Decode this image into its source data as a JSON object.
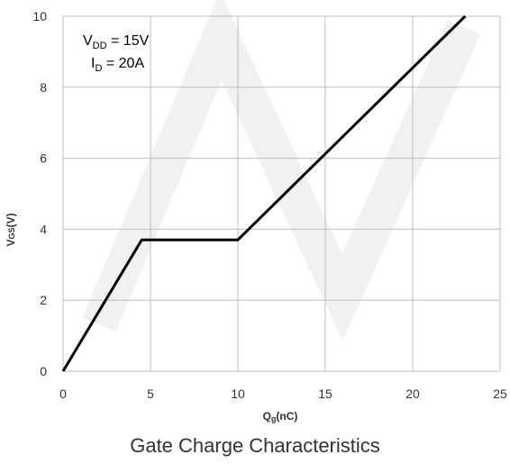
{
  "caption": "Gate Charge Characteristics",
  "chart_data": {
    "type": "line",
    "title": "Gate Charge Characteristics",
    "xlabel": {
      "main": "Q",
      "sub": "g",
      "rest": "(nC)"
    },
    "ylabel": {
      "main": "V",
      "sub": "GS",
      "rest": "(V)"
    },
    "xlim": [
      0,
      25
    ],
    "ylim": [
      0,
      10
    ],
    "xticks": [
      0,
      5,
      10,
      15,
      20,
      25
    ],
    "yticks": [
      0,
      2,
      4,
      6,
      8,
      10
    ],
    "grid": true,
    "series": [
      {
        "x": [
          0,
          4.5,
          10,
          23
        ],
        "y": [
          0,
          3.7,
          3.7,
          10
        ]
      }
    ],
    "annotations": [
      {
        "main": "V",
        "sub": "DD",
        "rest": " = 15V"
      },
      {
        "main": "I",
        "sub": "D",
        "rest": " = 20A"
      }
    ]
  },
  "colors": {
    "line": "#000000",
    "grid": "#bdbdbd",
    "text": "#333333",
    "watermark": "#f1f1f1"
  }
}
